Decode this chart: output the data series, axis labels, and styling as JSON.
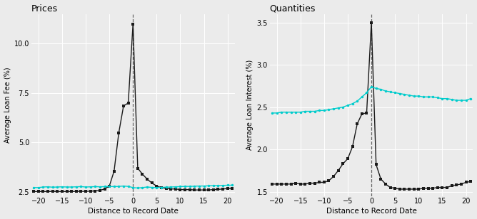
{
  "x": [
    -21,
    -20,
    -19,
    -18,
    -17,
    -16,
    -15,
    -14,
    -13,
    -12,
    -11,
    -10,
    -9,
    -8,
    -7,
    -6,
    -5,
    -4,
    -3,
    -2,
    -1,
    0,
    1,
    2,
    3,
    4,
    5,
    6,
    7,
    8,
    9,
    10,
    11,
    12,
    13,
    14,
    15,
    16,
    17,
    18,
    19,
    20,
    21
  ],
  "prices_black": [
    2.52,
    2.52,
    2.52,
    2.52,
    2.53,
    2.52,
    2.52,
    2.52,
    2.52,
    2.53,
    2.53,
    2.53,
    2.54,
    2.55,
    2.58,
    2.65,
    2.8,
    3.55,
    5.5,
    6.85,
    7.0,
    11.0,
    3.7,
    3.4,
    3.15,
    2.95,
    2.8,
    2.72,
    2.68,
    2.65,
    2.65,
    2.62,
    2.62,
    2.62,
    2.6,
    2.6,
    2.6,
    2.6,
    2.62,
    2.63,
    2.65,
    2.67,
    2.68
  ],
  "prices_cyan": [
    2.72,
    2.72,
    2.75,
    2.76,
    2.74,
    2.75,
    2.76,
    2.75,
    2.75,
    2.76,
    2.77,
    2.75,
    2.76,
    2.77,
    2.76,
    2.77,
    2.78,
    2.77,
    2.78,
    2.8,
    2.78,
    2.72,
    2.7,
    2.72,
    2.75,
    2.73,
    2.72,
    2.73,
    2.74,
    2.75,
    2.76,
    2.77,
    2.78,
    2.78,
    2.79,
    2.8,
    2.8,
    2.81,
    2.82,
    2.82,
    2.83,
    2.84,
    2.84
  ],
  "qty_black": [
    1.59,
    1.59,
    1.59,
    1.59,
    1.59,
    1.6,
    1.59,
    1.59,
    1.6,
    1.6,
    1.61,
    1.61,
    1.63,
    1.68,
    1.75,
    1.83,
    1.89,
    2.03,
    2.3,
    2.42,
    2.43,
    3.5,
    1.82,
    1.65,
    1.59,
    1.55,
    1.54,
    1.53,
    1.53,
    1.53,
    1.53,
    1.53,
    1.54,
    1.54,
    1.54,
    1.55,
    1.55,
    1.55,
    1.57,
    1.58,
    1.59,
    1.61,
    1.62
  ],
  "qty_cyan": [
    2.43,
    2.43,
    2.44,
    2.44,
    2.44,
    2.44,
    2.44,
    2.45,
    2.45,
    2.45,
    2.46,
    2.46,
    2.47,
    2.48,
    2.49,
    2.5,
    2.52,
    2.54,
    2.57,
    2.62,
    2.67,
    2.74,
    2.72,
    2.71,
    2.69,
    2.68,
    2.67,
    2.66,
    2.65,
    2.64,
    2.63,
    2.63,
    2.62,
    2.62,
    2.62,
    2.61,
    2.6,
    2.6,
    2.59,
    2.58,
    2.58,
    2.58,
    2.6
  ],
  "black_color": "#1a1a1a",
  "cyan_color": "#00CCCC",
  "bg_color": "#ebebeb",
  "grid_color": "#ffffff",
  "prices_title": "Prices",
  "qty_title": "Quantities",
  "prices_ylabel": "Average Loan Fee (%)",
  "qty_ylabel": "Average Loan Interest (%)",
  "xlabel": "Distance to Record Date",
  "prices_ylim": [
    2.3,
    11.5
  ],
  "prices_yticks": [
    2.5,
    5.0,
    7.5,
    10.0
  ],
  "qty_ylim": [
    1.45,
    3.6
  ],
  "qty_yticks": [
    1.5,
    2.0,
    2.5,
    3.0,
    3.5
  ],
  "xlim": [
    -21.5,
    21.5
  ],
  "xticks": [
    -20,
    -15,
    -10,
    -5,
    0,
    5,
    10,
    15,
    20
  ],
  "marker_black": "s",
  "marker_cyan": "o",
  "markersize": 2.5,
  "linewidth": 1.0
}
